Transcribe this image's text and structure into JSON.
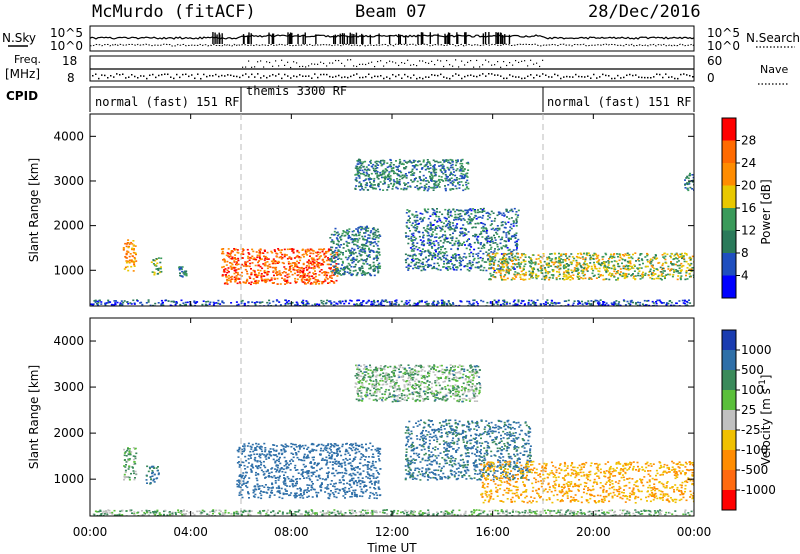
{
  "header": {
    "station": "McMurdo (fitACF)",
    "beam": "Beam 07",
    "date": "28/Dec/2016"
  },
  "summary": {
    "nsky_label": "N.Sky",
    "nsearch_label": "N.Search",
    "freq_label_line1": "Freq.",
    "freq_label_line2": "[MHz]",
    "nave_label": "Nave",
    "cpid_label": "CPID",
    "noise_ticks": [
      "10^5",
      "10^0"
    ],
    "freq_ticks": [
      "18",
      "8"
    ],
    "nave_ticks": [
      "60",
      "0"
    ],
    "cpid_segments": [
      {
        "label": "normal (fast) 151 RF",
        "start_h": 0,
        "end_h": 6
      },
      {
        "label": "themis 3300 RF",
        "start_h": 6,
        "end_h": 18
      },
      {
        "label": "normal (fast) 151 RF",
        "start_h": 18,
        "end_h": 24
      }
    ]
  },
  "colors": {
    "power": [
      "#0000ff",
      "#1f4fbf",
      "#2a7a5a",
      "#3a9a5a",
      "#e8c800",
      "#ff8c00",
      "#ff6a00",
      "#ff0000"
    ],
    "velocity": [
      "#1a3cb0",
      "#2e6fa8",
      "#3a8a5a",
      "#5abf3a",
      "#c0c0c0",
      "#f0c000",
      "#ff8c00",
      "#ff6a10",
      "#ff0000"
    ],
    "axis": "#000000",
    "divider": "#bbbbbb"
  },
  "chart_data": [
    {
      "type": "heatmap",
      "title": "",
      "xlabel": "Time UT",
      "ylabel": "Slant Range [km]",
      "xlim": [
        0,
        24
      ],
      "ylim": [
        200,
        4500
      ],
      "x_tick_labels": [
        "00:00",
        "04:00",
        "08:00",
        "12:00",
        "16:00",
        "20:00",
        "00:00"
      ],
      "y_tick_labels": [
        "1000",
        "2000",
        "3000",
        "4000"
      ],
      "colorbar": {
        "label": "Power [dB]",
        "ticks": [
          "4",
          "8",
          "12",
          "16",
          "20",
          "24",
          "28"
        ],
        "range": [
          0,
          32
        ]
      },
      "features": [
        {
          "start_h": 1.3,
          "end_h": 1.8,
          "range_km": [
            1000,
            1700
          ],
          "value": 22
        },
        {
          "start_h": 2.4,
          "end_h": 2.8,
          "range_km": [
            900,
            1300
          ],
          "value": 14
        },
        {
          "start_h": 3.5,
          "end_h": 3.8,
          "range_km": [
            850,
            1100
          ],
          "value": 10
        },
        {
          "start_h": 5.2,
          "end_h": 9.8,
          "range_km": [
            700,
            1500
          ],
          "value": 26
        },
        {
          "start_h": 9.5,
          "end_h": 11.5,
          "range_km": [
            900,
            2000
          ],
          "value": 10
        },
        {
          "start_h": 10.5,
          "end_h": 15.0,
          "range_km": [
            2800,
            3500
          ],
          "value": 10
        },
        {
          "start_h": 12.5,
          "end_h": 17.0,
          "range_km": [
            1000,
            2400
          ],
          "value": 9
        },
        {
          "start_h": 15.8,
          "end_h": 17.3,
          "range_km": [
            800,
            1400
          ],
          "value": 18
        },
        {
          "start_h": 17.4,
          "end_h": 24.0,
          "range_km": [
            800,
            1400
          ],
          "value": 16
        },
        {
          "start_h": 23.6,
          "end_h": 24.0,
          "range_km": [
            2800,
            3200
          ],
          "value": 8
        },
        {
          "start_h": 0,
          "end_h": 24.0,
          "range_km": [
            200,
            350
          ],
          "value": 6
        }
      ]
    },
    {
      "type": "heatmap",
      "title": "",
      "xlabel": "Time UT",
      "ylabel": "Slant Range [km]",
      "xlim": [
        0,
        24
      ],
      "ylim": [
        200,
        4500
      ],
      "x_tick_labels": [
        "00:00",
        "04:00",
        "08:00",
        "12:00",
        "16:00",
        "20:00",
        "00:00"
      ],
      "y_tick_labels": [
        "1000",
        "2000",
        "3000",
        "4000"
      ],
      "colorbar": {
        "label": "Velocity [m s^-1]",
        "ticks": [
          "1000",
          "500",
          "100",
          "25",
          "-25",
          "-100",
          "-500",
          "-1000"
        ],
        "range": [
          -1000,
          1000
        ]
      },
      "features": [
        {
          "start_h": 1.3,
          "end_h": 1.8,
          "range_km": [
            1000,
            1700
          ],
          "value": 0
        },
        {
          "start_h": 2.2,
          "end_h": 2.7,
          "range_km": [
            900,
            1300
          ],
          "value": 120
        },
        {
          "start_h": 5.8,
          "end_h": 11.5,
          "range_km": [
            600,
            1800
          ],
          "value": 300
        },
        {
          "start_h": 10.5,
          "end_h": 15.5,
          "range_km": [
            2700,
            3500
          ],
          "value": 10
        },
        {
          "start_h": 12.5,
          "end_h": 17.5,
          "range_km": [
            1000,
            2300
          ],
          "value": 150
        },
        {
          "start_h": 15.5,
          "end_h": 24.0,
          "range_km": [
            500,
            1400
          ],
          "value": -300
        },
        {
          "start_h": 0,
          "end_h": 24.0,
          "range_km": [
            200,
            350
          ],
          "value": 0
        }
      ]
    }
  ]
}
